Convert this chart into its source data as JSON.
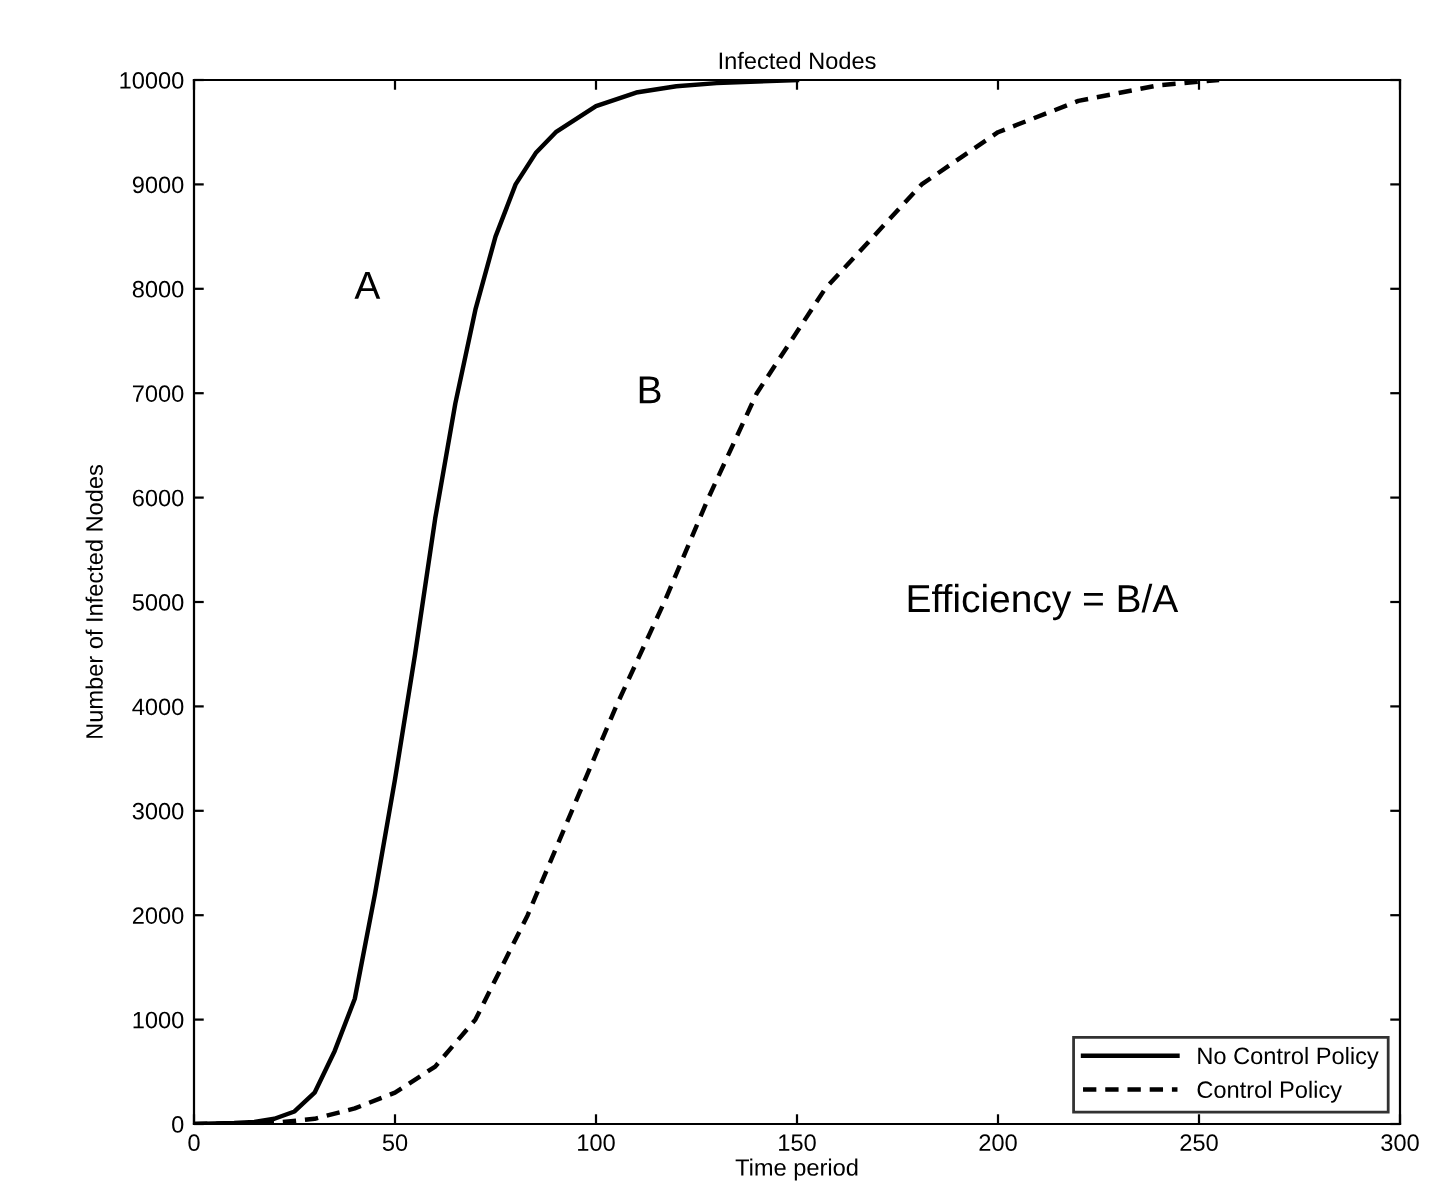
{
  "chart_data": {
    "type": "line",
    "title": "Infected Nodes",
    "xlabel": "Time period",
    "ylabel": "Number of Infected Nodes",
    "xlim": [
      0,
      300
    ],
    "ylim": [
      0,
      10000
    ],
    "xticks": [
      0,
      50,
      100,
      150,
      200,
      250,
      300
    ],
    "yticks": [
      0,
      1000,
      2000,
      3000,
      4000,
      5000,
      6000,
      7000,
      8000,
      9000,
      10000
    ],
    "grid": false,
    "legend": "bottom right",
    "series": [
      {
        "name": "No Control Policy",
        "color": "#000000",
        "line_style": "solid",
        "x": [
          0,
          10,
          15,
          20,
          25,
          30,
          35,
          40,
          45,
          50,
          55,
          60,
          65,
          70,
          75,
          80,
          85,
          90,
          100,
          110,
          120,
          130,
          150
        ],
        "values": [
          0,
          10,
          20,
          50,
          120,
          300,
          700,
          1200,
          2200,
          3300,
          4500,
          5800,
          6900,
          7800,
          8500,
          9000,
          9300,
          9500,
          9750,
          9880,
          9940,
          9970,
          10000
        ]
      },
      {
        "name": "Control Policy",
        "color": "#000000",
        "line_style": "dashed",
        "x": [
          0,
          20,
          30,
          40,
          50,
          60,
          70,
          83,
          94,
          105,
          117,
          128,
          140,
          157,
          181,
          200,
          220,
          240,
          255
        ],
        "values": [
          0,
          10,
          50,
          150,
          300,
          550,
          1000,
          2000,
          3000,
          4000,
          5000,
          6000,
          7000,
          8000,
          9000,
          9500,
          9800,
          9950,
          10000
        ]
      }
    ],
    "annotations": [
      "A",
      "B",
      "Efficiency = B/A"
    ]
  }
}
